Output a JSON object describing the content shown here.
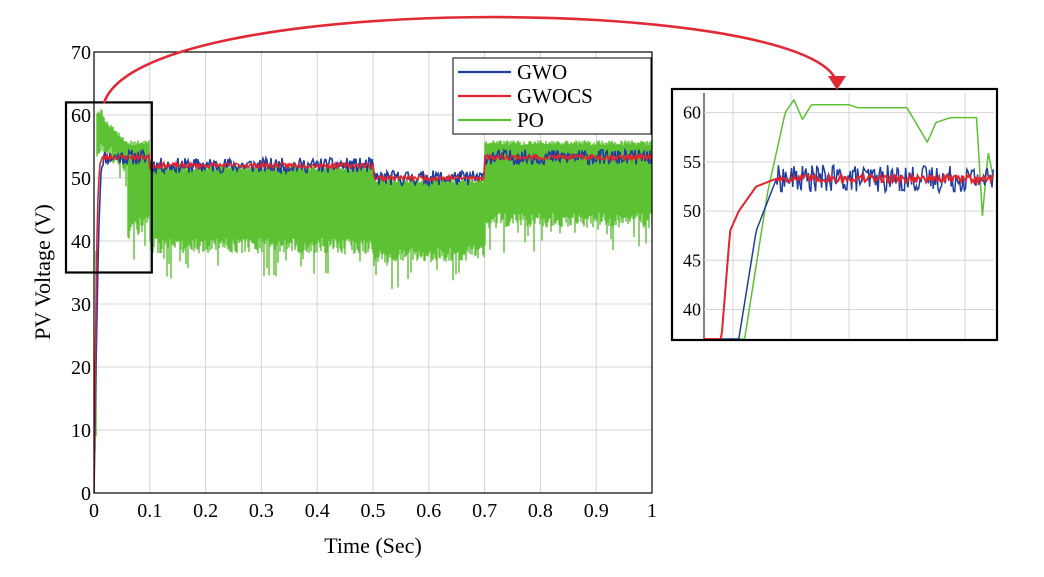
{
  "colors": {
    "gwo": "#1f3f9f",
    "gwocs": "#e0252f",
    "po": "#5cc133",
    "arrow": "#e02a36",
    "grid": "#d4d4d4"
  },
  "chart_data": [
    {
      "id": "main",
      "type": "line",
      "xlabel": "Time (Sec)",
      "ylabel": "PV Voltage (V)",
      "xlim": [
        0,
        1
      ],
      "ylim": [
        0,
        70
      ],
      "xticks": [
        0,
        0.1,
        0.2,
        0.3,
        0.4,
        0.5,
        0.6,
        0.7,
        0.8,
        0.9,
        1
      ],
      "xtick_labels": [
        "0",
        "0.1",
        "0.2",
        "0.3",
        "0.4",
        "0.5",
        "0.6",
        "0.7",
        "0.8",
        "0.9",
        "1"
      ],
      "yticks": [
        0,
        10,
        20,
        30,
        40,
        50,
        60,
        70
      ],
      "ytick_labels": [
        "0",
        "10",
        "20",
        "30",
        "40",
        "50",
        "60",
        "70"
      ],
      "grid": true,
      "legend": {
        "position": "top-right",
        "entries": [
          "GWO",
          "GWOCS",
          "PO"
        ]
      },
      "zoom_box": {
        "x": [
          0,
          0.1
        ],
        "y": [
          35,
          62
        ]
      },
      "series": [
        {
          "name": "GWO",
          "x": [
            0,
            0.004,
            0.008,
            0.012,
            0.016,
            0.02,
            0.1,
            0.1,
            0.5,
            0.5,
            0.7,
            0.7,
            0.702,
            1
          ],
          "y": [
            0,
            22,
            40,
            51,
            53,
            53.3,
            53.3,
            52,
            52,
            50,
            50,
            54,
            53.3,
            53.3
          ],
          "ripple": 1.2
        },
        {
          "name": "GWOCS",
          "x": [
            0,
            0.003,
            0.006,
            0.01,
            0.014,
            0.02,
            0.1,
            0.1,
            0.5,
            0.5,
            0.7,
            0.7,
            0.702,
            1
          ],
          "y": [
            0,
            25,
            45,
            52,
            53,
            53.3,
            53.3,
            52,
            52,
            50,
            50,
            54,
            53.3,
            53.3
          ],
          "ripple": 0.4
        },
        {
          "name": "PO",
          "envelope": [
            {
              "x": [
                0.0,
                0.005
              ],
              "high": [
                5,
                52
              ],
              "low": [
                0,
                18
              ]
            },
            {
              "x": [
                0.005,
                0.015
              ],
              "high": [
                61,
                61
              ],
              "low": [
                52,
                54
              ]
            },
            {
              "x": [
                0.015,
                0.06
              ],
              "high": [
                60,
                56
              ],
              "low": [
                54,
                50
              ]
            },
            {
              "x": [
                0.06,
                0.1
              ],
              "high": [
                56,
                56
              ],
              "low": [
                40,
                42
              ]
            },
            {
              "x": [
                0.1,
                0.5
              ],
              "high": [
                52,
                52
              ],
              "low": [
                38,
                38
              ]
            },
            {
              "x": [
                0.5,
                0.7
              ],
              "high": [
                50,
                50
              ],
              "low": [
                36,
                37
              ]
            },
            {
              "x": [
                0.7,
                1.0
              ],
              "high": [
                56,
                56
              ],
              "low": [
                42,
                42
              ]
            }
          ]
        }
      ]
    },
    {
      "id": "inset",
      "type": "line",
      "title": "",
      "xlim": [
        0,
        0.1
      ],
      "ylim": [
        37,
        62
      ],
      "yticks": [
        40,
        45,
        50,
        55,
        60
      ],
      "ytick_labels": [
        "40",
        "45",
        "50",
        "55",
        "60"
      ],
      "grid": true,
      "series": [
        {
          "name": "GWO",
          "x": [
            0.0,
            0.012,
            0.018,
            0.025,
            0.1
          ],
          "y": [
            37,
            37,
            48,
            53.3,
            53.3
          ],
          "ripple": 1.4
        },
        {
          "name": "GWOCS",
          "x": [
            0.0,
            0.006,
            0.009,
            0.012,
            0.018,
            0.025,
            0.1
          ],
          "y": [
            37,
            37,
            48,
            50,
            52.5,
            53.3,
            53.3
          ],
          "ripple": 0.4
        },
        {
          "name": "PO",
          "x": [
            0.0,
            0.014,
            0.022,
            0.028,
            0.031,
            0.034,
            0.037,
            0.05,
            0.053,
            0.07,
            0.077,
            0.08,
            0.085,
            0.094,
            0.096,
            0.098,
            0.1
          ],
          "y": [
            37,
            37,
            52,
            60,
            61.3,
            59.3,
            60.8,
            60.8,
            60.5,
            60.5,
            57,
            59,
            59.5,
            59.5,
            49.5,
            56,
            53
          ],
          "ripple": 0
        }
      ]
    }
  ]
}
